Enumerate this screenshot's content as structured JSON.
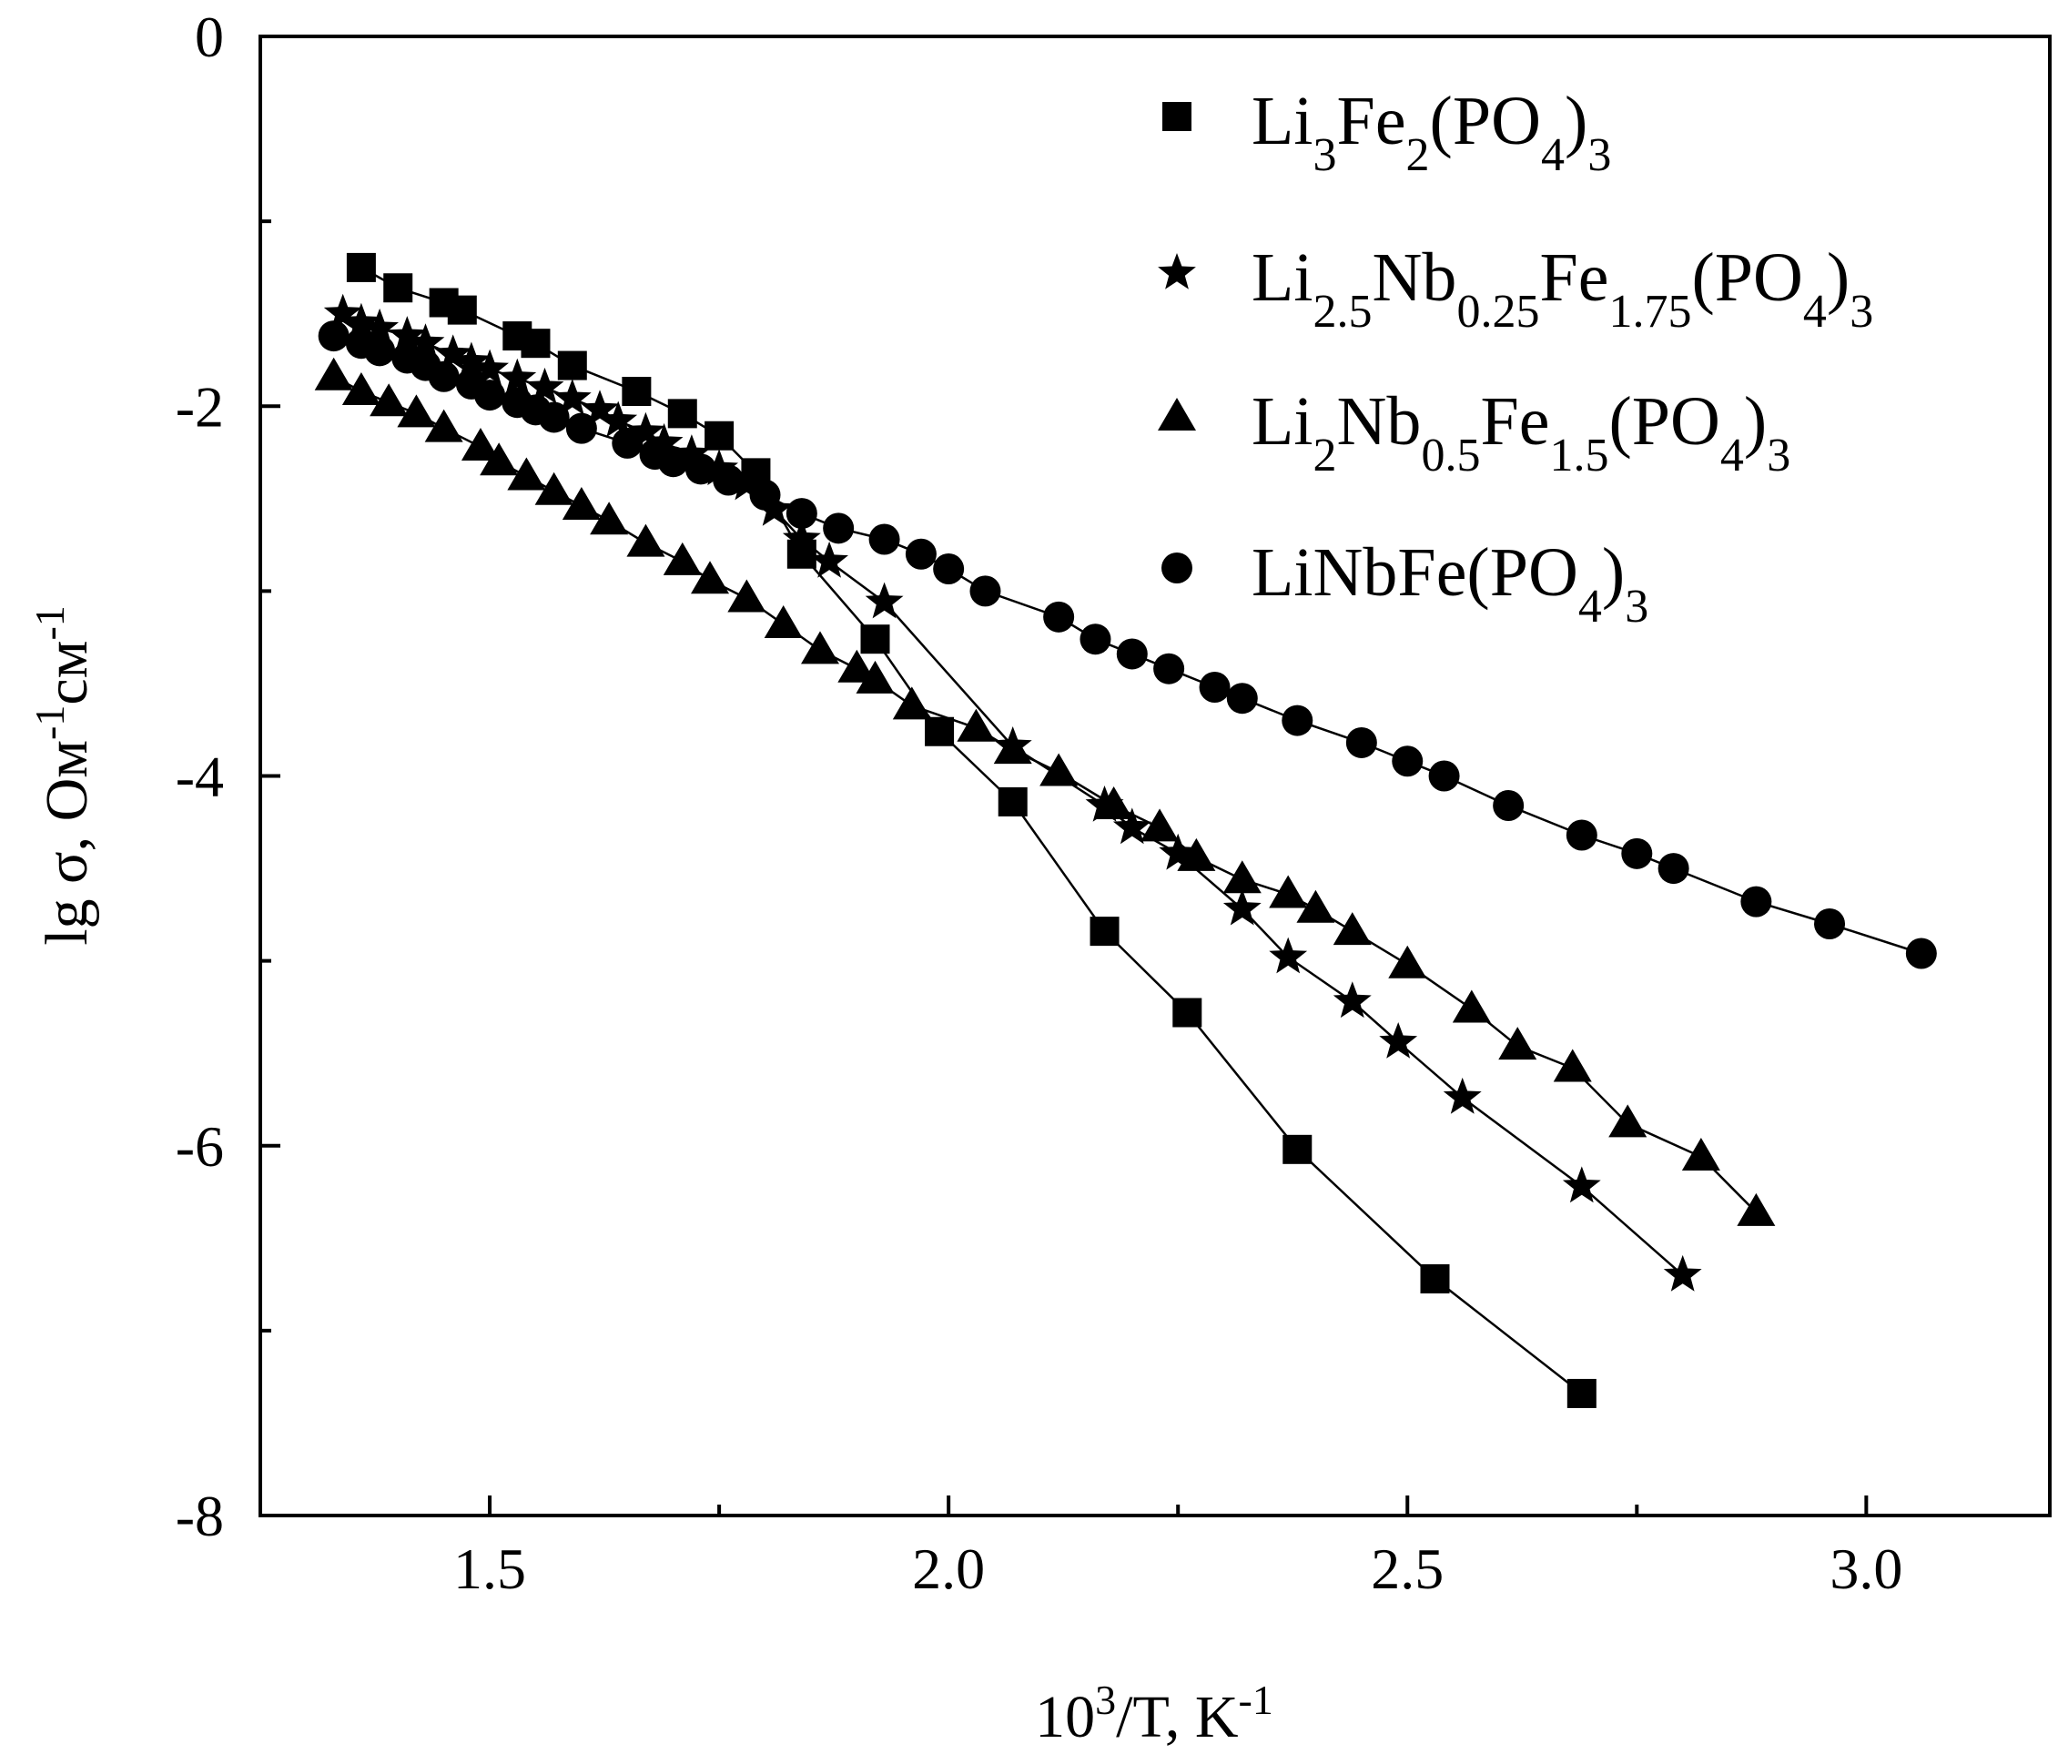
{
  "chart_data": {
    "type": "scatter",
    "xlabel": "10³/T, K⁻¹",
    "ylabel": "lg σ, Ом⁻¹см⁻¹",
    "xlim": [
      1.25,
      3.2
    ],
    "ylim": [
      -8,
      0
    ],
    "xticks": [
      "1.5",
      "2.0",
      "2.5",
      "3.0"
    ],
    "yticks": [
      "0",
      "-2",
      "-4",
      "-6",
      "-8"
    ],
    "grid": false,
    "legend_position": "top-right",
    "series": [
      {
        "name": "Li3Fe2(PO4)3",
        "marker": "square",
        "x": [
          1.36,
          1.4,
          1.45,
          1.47,
          1.53,
          1.55,
          1.59,
          1.66,
          1.71,
          1.75,
          1.79,
          1.84,
          1.92,
          1.99,
          2.07,
          2.17,
          2.26,
          2.38,
          2.53,
          2.69
        ],
        "y": [
          -1.25,
          -1.36,
          -1.44,
          -1.48,
          -1.62,
          -1.66,
          -1.78,
          -1.92,
          -2.04,
          -2.16,
          -2.36,
          -2.8,
          -3.26,
          -3.76,
          -4.14,
          -4.84,
          -5.28,
          -6.02,
          -6.72,
          -7.34
        ]
      },
      {
        "name": "Li2.5Nb0.25Fe1.75(PO4)3",
        "marker": "star",
        "x": [
          1.34,
          1.36,
          1.38,
          1.41,
          1.43,
          1.46,
          1.48,
          1.5,
          1.53,
          1.56,
          1.59,
          1.62,
          1.64,
          1.67,
          1.69,
          1.72,
          1.75,
          1.78,
          1.81,
          1.84,
          1.87,
          1.93,
          2.07,
          2.17,
          2.2,
          2.25,
          2.32,
          2.37,
          2.44,
          2.49,
          2.56,
          2.69,
          2.8
        ],
        "y": [
          -1.5,
          -1.55,
          -1.58,
          -1.62,
          -1.66,
          -1.72,
          -1.76,
          -1.8,
          -1.85,
          -1.9,
          -1.96,
          -2.02,
          -2.08,
          -2.14,
          -2.2,
          -2.26,
          -2.34,
          -2.42,
          -2.56,
          -2.72,
          -2.84,
          -3.06,
          -3.84,
          -4.16,
          -4.28,
          -4.42,
          -4.72,
          -4.98,
          -5.22,
          -5.44,
          -5.74,
          -6.22,
          -6.7
        ]
      },
      {
        "name": "Li2Nb0.5Fe1.5(PO4)3",
        "marker": "triangle",
        "x": [
          1.33,
          1.36,
          1.39,
          1.42,
          1.45,
          1.49,
          1.51,
          1.54,
          1.57,
          1.6,
          1.63,
          1.67,
          1.71,
          1.74,
          1.78,
          1.82,
          1.86,
          1.9,
          1.92,
          1.96,
          2.03,
          2.07,
          2.12,
          2.18,
          2.23,
          2.27,
          2.32,
          2.37,
          2.4,
          2.44,
          2.5,
          2.57,
          2.62,
          2.68,
          2.74,
          2.82,
          2.88
        ],
        "y": [
          -1.84,
          -1.92,
          -1.98,
          -2.04,
          -2.12,
          -2.22,
          -2.3,
          -2.38,
          -2.46,
          -2.54,
          -2.62,
          -2.74,
          -2.84,
          -2.94,
          -3.04,
          -3.18,
          -3.32,
          -3.42,
          -3.48,
          -3.62,
          -3.74,
          -3.86,
          -3.98,
          -4.16,
          -4.28,
          -4.44,
          -4.56,
          -4.64,
          -4.72,
          -4.84,
          -5.02,
          -5.26,
          -5.46,
          -5.58,
          -5.88,
          -6.06,
          -6.36
        ]
      },
      {
        "name": "LiNbFe(PO4)3",
        "marker": "circle",
        "x": [
          1.33,
          1.36,
          1.38,
          1.41,
          1.43,
          1.45,
          1.48,
          1.5,
          1.53,
          1.55,
          1.57,
          1.6,
          1.65,
          1.68,
          1.7,
          1.73,
          1.76,
          1.8,
          1.84,
          1.88,
          1.93,
          1.97,
          2.0,
          2.04,
          2.12,
          2.16,
          2.2,
          2.24,
          2.29,
          2.32,
          2.38,
          2.45,
          2.5,
          2.54,
          2.61,
          2.69,
          2.75,
          2.79,
          2.88,
          2.96,
          3.06
        ],
        "y": [
          -1.62,
          -1.66,
          -1.7,
          -1.74,
          -1.78,
          -1.84,
          -1.88,
          -1.94,
          -1.98,
          -2.02,
          -2.06,
          -2.12,
          -2.2,
          -2.26,
          -2.3,
          -2.34,
          -2.4,
          -2.48,
          -2.58,
          -2.66,
          -2.72,
          -2.8,
          -2.88,
          -3.0,
          -3.14,
          -3.26,
          -3.34,
          -3.42,
          -3.52,
          -3.58,
          -3.7,
          -3.82,
          -3.92,
          -4.0,
          -4.16,
          -4.32,
          -4.42,
          -4.5,
          -4.68,
          -4.8,
          -4.96
        ]
      }
    ]
  }
}
